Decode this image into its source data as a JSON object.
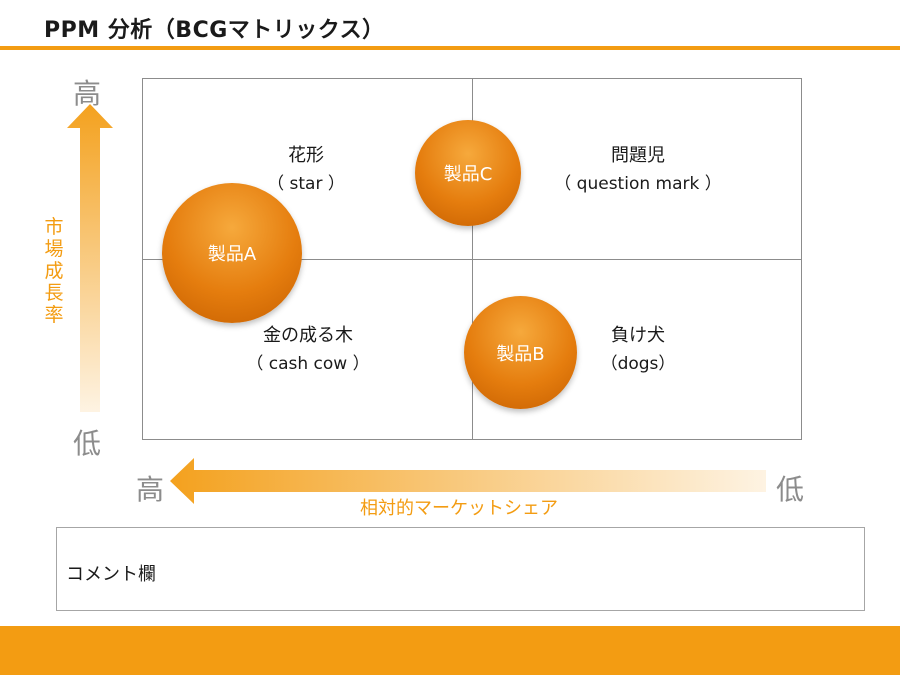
{
  "title": "PPM 分析（BCGマトリックス）",
  "y_axis": {
    "title": "市場成長率",
    "high": "高",
    "low": "低"
  },
  "x_axis": {
    "title": "相対的マーケットシェア",
    "high": "高",
    "low": "低"
  },
  "quadrants": {
    "top_left": {
      "name": "花形",
      "sub": "（ star ）"
    },
    "top_right": {
      "name": "問題児",
      "sub": "（ question mark ）"
    },
    "bottom_left": {
      "name": "金の成る木",
      "sub": "（ cash cow ）"
    },
    "bottom_right": {
      "name": "負け犬",
      "sub": "（dogs）"
    }
  },
  "products": [
    {
      "label": "製品A"
    },
    {
      "label": "製品B"
    },
    {
      "label": "製品C"
    }
  ],
  "comment": {
    "label": "コメント欄"
  },
  "colors": {
    "accent": "#f39c12",
    "bubble": "#e57d0e",
    "grid": "#8c8c8c"
  }
}
